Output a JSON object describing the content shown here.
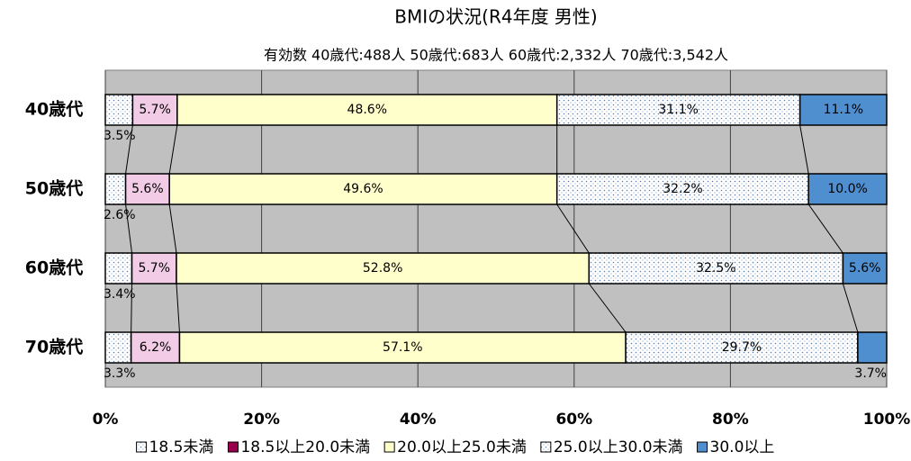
{
  "chart_data": {
    "type": "stacked_barh",
    "title": "BMIの状況(R4年度 男性)",
    "subtitle": "有効数 40歳代:488人 50歳代:683人 60歳代:2,332人 70歳代:3,542人",
    "categories": [
      "40歳代",
      "50歳代",
      "60歳代",
      "70歳代"
    ],
    "series": [
      {
        "name": "18.5未満",
        "color": "#ffffff",
        "pattern": "dotted",
        "values": [
          3.5,
          2.6,
          3.4,
          3.3
        ],
        "value_labels": [
          "3.5%",
          "2.6%",
          "3.4%",
          "3.3%"
        ]
      },
      {
        "name": "18.5以上20.0未満",
        "color": "#f2cce6",
        "legend_color": "#99004d",
        "values": [
          5.7,
          5.6,
          5.7,
          6.2
        ],
        "value_labels": [
          "5.7%",
          "5.6%",
          "5.7%",
          "6.2%"
        ]
      },
      {
        "name": "20.0以上25.0未満",
        "color": "#ffffcc",
        "values": [
          48.6,
          49.6,
          52.8,
          57.1
        ],
        "value_labels": [
          "48.6%",
          "49.6%",
          "52.8%",
          "57.1%"
        ]
      },
      {
        "name": "25.0以上30.0未満",
        "color": "#ffffff",
        "pattern": "dotted",
        "values": [
          31.1,
          32.2,
          32.5,
          29.7
        ],
        "value_labels": [
          "31.1%",
          "32.2%",
          "32.5%",
          "29.7%"
        ]
      },
      {
        "name": "30.0以上",
        "color": "#4f8fcf",
        "values": [
          11.1,
          10.0,
          5.6,
          3.7
        ],
        "value_labels": [
          "11.1%",
          "10.0%",
          "5.6%",
          "3.7%"
        ]
      }
    ],
    "xlim": [
      0,
      100
    ],
    "xticks": [
      {
        "value": 0,
        "label": "0%"
      },
      {
        "value": 20,
        "label": "20%"
      },
      {
        "value": 40,
        "label": "40%"
      },
      {
        "value": 60,
        "label": "60%"
      },
      {
        "value": 80,
        "label": "80%"
      },
      {
        "value": 100,
        "label": "100%"
      }
    ],
    "grid": true,
    "legend": "bottom"
  }
}
